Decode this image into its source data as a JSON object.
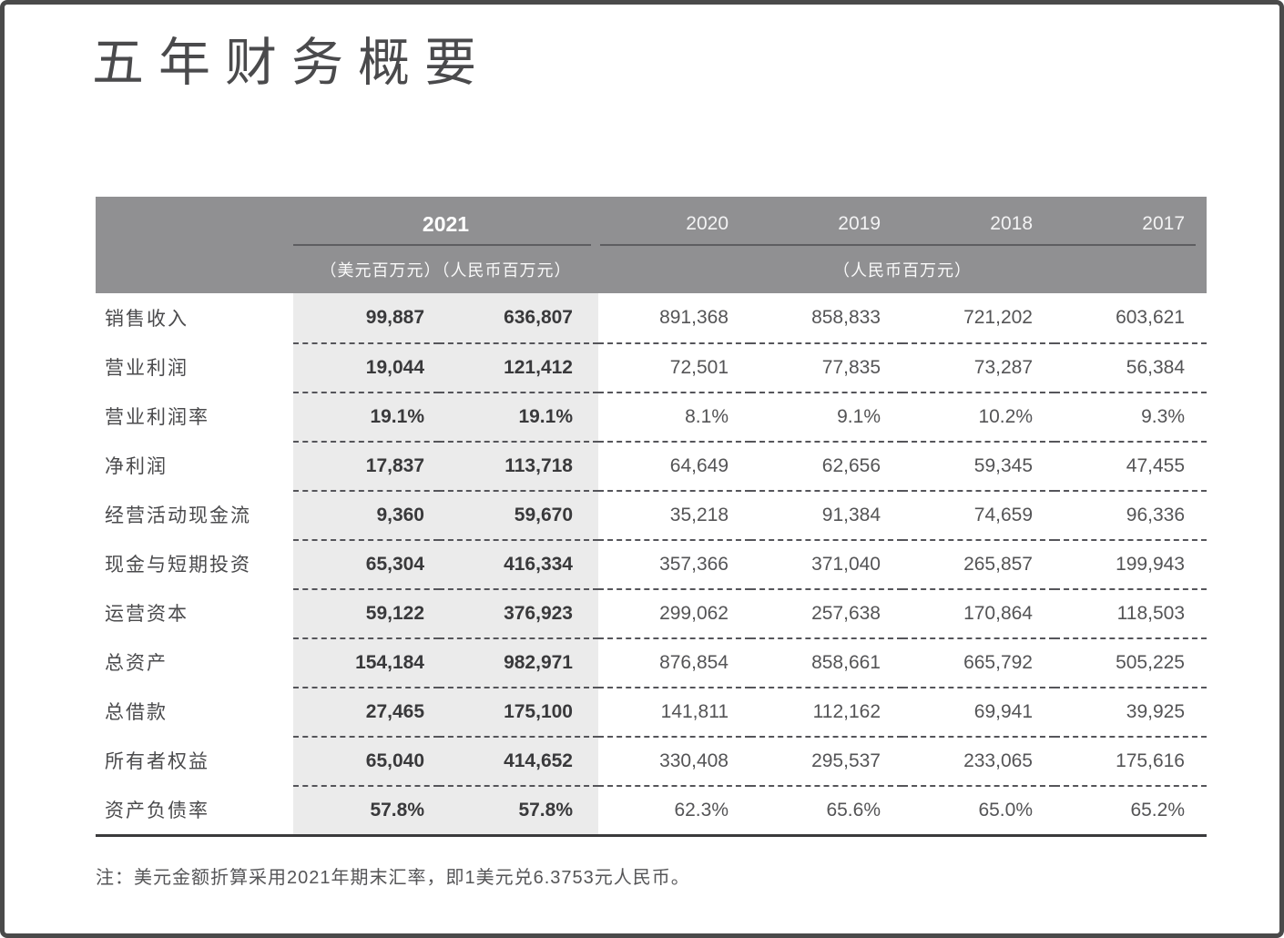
{
  "page": {
    "title": "五年财务概要",
    "footnote": "注：美元金额折算采用2021年期末汇率，即1美元兑6.3753元人民币。"
  },
  "colors": {
    "header_band": "#909092",
    "header_text": "#ffffff",
    "current_year_column_shade": "#ebebeb",
    "body_text": "#545456",
    "bold_value_text": "#39393b",
    "outer_border": "#4a4a4a"
  },
  "table": {
    "header": {
      "year_current": "2021",
      "years_prior": [
        "2020",
        "2019",
        "2018",
        "2017"
      ],
      "unit_current": "（美元百万元）（人民币百万元）",
      "unit_prior": "（人民币百万元）"
    },
    "rows": [
      {
        "label": "销售收入",
        "values": [
          "99,887",
          "636,807",
          "891,368",
          "858,833",
          "721,202",
          "603,621"
        ]
      },
      {
        "label": "营业利润",
        "values": [
          "19,044",
          "121,412",
          "72,501",
          "77,835",
          "73,287",
          "56,384"
        ]
      },
      {
        "label": "营业利润率",
        "values": [
          "19.1%",
          "19.1%",
          "8.1%",
          "9.1%",
          "10.2%",
          "9.3%"
        ]
      },
      {
        "label": "净利润",
        "values": [
          "17,837",
          "113,718",
          "64,649",
          "62,656",
          "59,345",
          "47,455"
        ]
      },
      {
        "label": "经营活动现金流",
        "values": [
          "9,360",
          "59,670",
          "35,218",
          "91,384",
          "74,659",
          "96,336"
        ]
      },
      {
        "label": "现金与短期投资",
        "values": [
          "65,304",
          "416,334",
          "357,366",
          "371,040",
          "265,857",
          "199,943"
        ]
      },
      {
        "label": "运营资本",
        "values": [
          "59,122",
          "376,923",
          "299,062",
          "257,638",
          "170,864",
          "118,503"
        ]
      },
      {
        "label": "总资产",
        "values": [
          "154,184",
          "982,971",
          "876,854",
          "858,661",
          "665,792",
          "505,225"
        ]
      },
      {
        "label": "总借款",
        "values": [
          "27,465",
          "175,100",
          "141,811",
          "112,162",
          "69,941",
          "39,925"
        ]
      },
      {
        "label": "所有者权益",
        "values": [
          "65,040",
          "414,652",
          "330,408",
          "295,537",
          "233,065",
          "175,616"
        ]
      },
      {
        "label": "资产负债率",
        "values": [
          "57.8%",
          "57.8%",
          "62.3%",
          "65.6%",
          "65.0%",
          "65.2%"
        ]
      }
    ]
  }
}
